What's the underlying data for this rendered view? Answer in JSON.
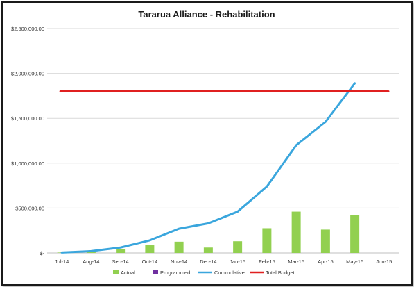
{
  "chart_data": {
    "type": "bar+line",
    "title": "Tararua  Alliance - Rehabilitation",
    "categories": [
      "Jul-14",
      "Aug-14",
      "Sep-14",
      "Oct-14",
      "Nov-14",
      "Dec-14",
      "Jan-15",
      "Feb-15",
      "Mar-15",
      "Apr-15",
      "May-15",
      "Jun-15"
    ],
    "ylim": [
      0,
      2500000
    ],
    "yticks": [
      0,
      500000,
      1000000,
      1500000,
      2000000,
      2500000
    ],
    "ytick_labels": [
      "$-",
      "$500,000.00",
      "$1,000,000.00",
      "$1,500,000.00",
      "$2,000,000.00",
      "$2,500,000.00"
    ],
    "grid": true,
    "legend_position": "bottom",
    "series": [
      {
        "name": "Actual",
        "kind": "bar",
        "color": "#92d050",
        "values": [
          5000,
          15000,
          40000,
          85000,
          125000,
          60000,
          130000,
          275000,
          460000,
          260000,
          420000,
          null
        ]
      },
      {
        "name": "Programmed",
        "kind": "bar",
        "color": "#7030a0",
        "values": [
          null,
          null,
          null,
          null,
          null,
          null,
          null,
          null,
          null,
          null,
          null,
          null
        ]
      },
      {
        "name": "Cummulative",
        "kind": "line",
        "color": "#3aa6dd",
        "values": [
          5000,
          20000,
          60000,
          140000,
          270000,
          330000,
          460000,
          740000,
          1200000,
          1460000,
          1890000,
          null
        ]
      },
      {
        "name": "Total Budget",
        "kind": "line",
        "color": "#e02020",
        "values": [
          1800000,
          1800000,
          1800000,
          1800000,
          1800000,
          1800000,
          1800000,
          1800000,
          1800000,
          1800000,
          1800000,
          1800000
        ]
      }
    ]
  }
}
